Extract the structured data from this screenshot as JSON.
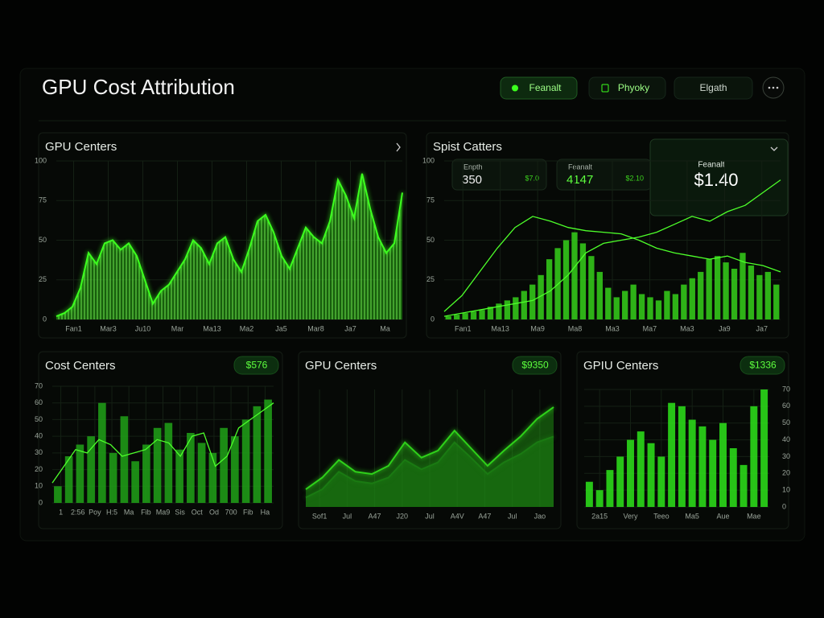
{
  "header": {
    "title": "GPU Cost Attribution",
    "buttons": [
      "Feanalt",
      "Phyoky",
      "Elgath"
    ]
  },
  "panels": [
    {
      "title": "GPU Centers",
      "chart": {
        "type": "area",
        "ylim": [
          0,
          100
        ],
        "yticks": [
          0,
          25,
          50,
          75,
          100
        ],
        "xlabels": [
          "Fan1",
          "Mar3",
          "Ju10",
          "Mar",
          "Ma13",
          "Ma2",
          "Ja5",
          "Mar8",
          "Ja7",
          "Ma"
        ],
        "series": [
          {
            "color": "#3cff1e",
            "values": [
              2,
              4,
              8,
              20,
              42,
              35,
              48,
              50,
              44,
              48,
              40,
              25,
              10,
              18,
              22,
              30,
              38,
              50,
              45,
              35,
              48,
              52,
              38,
              30,
              45,
              62,
              66,
              55,
              40,
              32,
              45,
              58,
              52,
              48,
              62,
              88,
              78,
              64,
              92,
              70,
              52,
              42,
              48,
              80
            ]
          }
        ]
      }
    },
    {
      "title": "Spist Catters",
      "kpis": [
        {
          "label": "Enpth",
          "value": "350",
          "delta": "$7.0"
        },
        {
          "label": "Feanalt",
          "value": "4147",
          "delta": "$2.10"
        }
      ],
      "tooltip": {
        "label": "Feanalt",
        "value": "$1.40"
      },
      "chart": {
        "type": "bar",
        "ylim": [
          0,
          100
        ],
        "yticks": [
          0,
          25,
          50,
          75,
          100
        ],
        "color": "#33c51a",
        "xlabels": [
          "Fan1",
          "Ma13",
          "Ma9",
          "Ma8",
          "Ma3",
          "Ma7",
          "Ma3",
          "Ja9",
          "Ja7"
        ],
        "values": [
          2,
          3,
          4,
          5,
          6,
          8,
          10,
          12,
          14,
          18,
          22,
          28,
          38,
          45,
          50,
          55,
          48,
          40,
          30,
          20,
          14,
          18,
          22,
          16,
          14,
          12,
          18,
          16,
          22,
          26,
          30,
          38,
          40,
          36,
          32,
          42,
          34,
          28,
          30,
          22
        ],
        "lines": [
          [
            5,
            15,
            30,
            45,
            58,
            65,
            62,
            58,
            56,
            55,
            54,
            50,
            45,
            42,
            40,
            38,
            40,
            36,
            34,
            30
          ],
          [
            2,
            4,
            6,
            8,
            10,
            12,
            18,
            28,
            42,
            48,
            50,
            52,
            55,
            60,
            65,
            62,
            68,
            72,
            80,
            88
          ]
        ]
      }
    },
    {
      "title": "Cost Centers",
      "badge": "$576",
      "chart": {
        "type": "bar",
        "ylim": [
          0,
          70
        ],
        "yticks": [
          0,
          10,
          20,
          30,
          40,
          50,
          60,
          70
        ],
        "color": "#1f9a17",
        "xlabels": [
          "1",
          "2:56",
          "Poy",
          "H:5",
          "Ma",
          "Fib",
          "Ma9",
          "Sis",
          "Oct",
          "Od",
          "700",
          "Fib",
          "Ha"
        ],
        "values": [
          10,
          28,
          35,
          40,
          60,
          30,
          52,
          25,
          35,
          45,
          48,
          32,
          42,
          36,
          30,
          45,
          40,
          50,
          58,
          62
        ],
        "lines": [
          [
            12,
            22,
            32,
            30,
            38,
            35,
            28,
            30,
            32,
            38,
            36,
            28,
            40,
            42,
            22,
            28,
            45,
            50,
            55,
            60
          ]
        ]
      }
    },
    {
      "title": "GPU Centers",
      "badge": "$9350",
      "chart": {
        "type": "area",
        "ylim": [
          0,
          100
        ],
        "xlabels": [
          "Sof1",
          "Jul",
          "A47",
          "J20",
          "Jul",
          "A4V",
          "A47",
          "Jul",
          "Jao"
        ],
        "series": [
          {
            "color": "#2fd11a",
            "values": [
              15,
              25,
              40,
              30,
              28,
              35,
              55,
              42,
              48,
              65,
              50,
              35,
              48,
              60,
              75,
              85
            ]
          },
          {
            "color": "#1a7a12",
            "values": [
              8,
              15,
              30,
              22,
              20,
              25,
              40,
              32,
              38,
              55,
              42,
              28,
              38,
              45,
              55,
              60
            ]
          }
        ]
      }
    },
    {
      "title": "GPIU Centers",
      "badge": "$1336",
      "chart": {
        "type": "bar",
        "ylim": [
          0,
          70
        ],
        "yticks": [
          0,
          10,
          20,
          30,
          40,
          50,
          60,
          70
        ],
        "yaxis": "right",
        "color": "#2bd81a",
        "xlabels": [
          "2a15",
          "Very",
          "Teeo",
          "Ma5",
          "Aue",
          "Mae"
        ],
        "values": [
          15,
          10,
          22,
          30,
          40,
          45,
          38,
          30,
          62,
          60,
          52,
          48,
          40,
          50,
          35,
          25,
          60,
          70
        ]
      }
    }
  ]
}
